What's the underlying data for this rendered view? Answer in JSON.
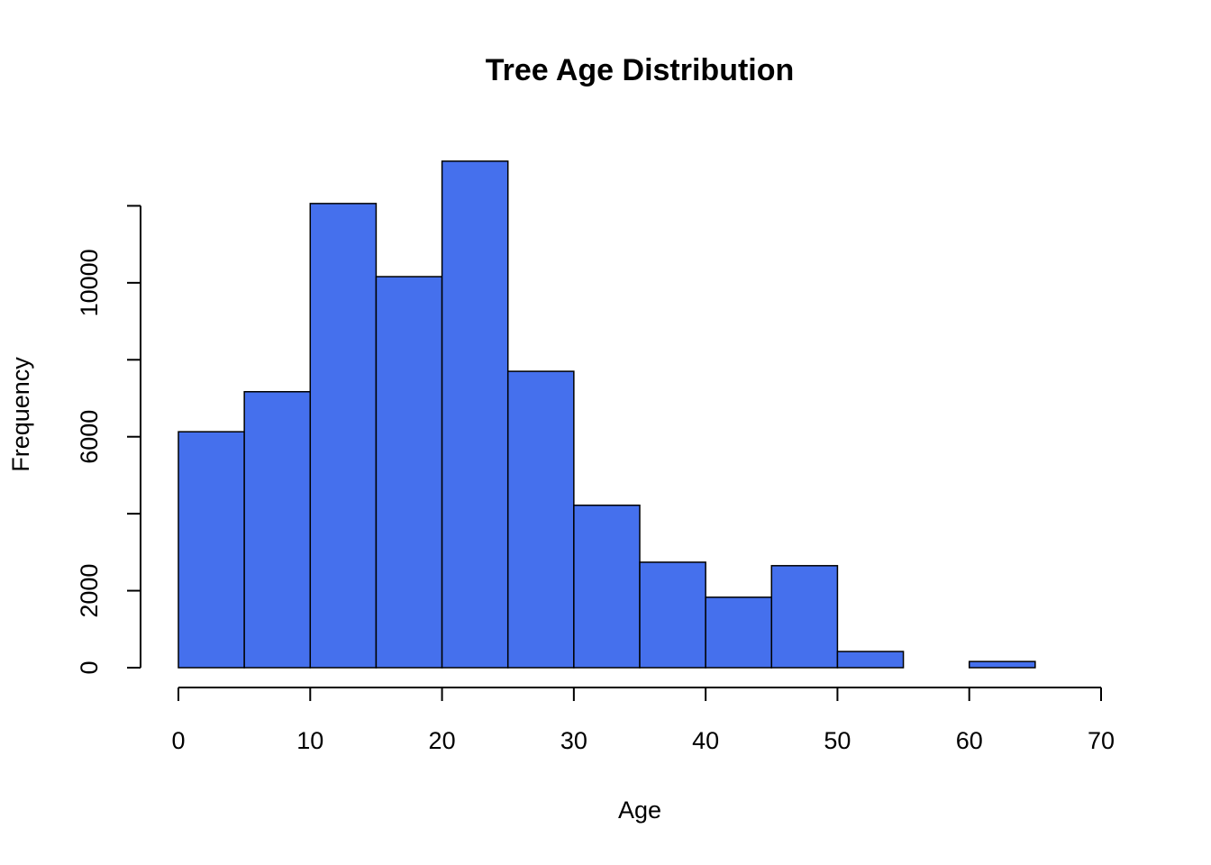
{
  "chart_data": {
    "type": "histogram",
    "title": "Tree Age Distribution",
    "x_label": "Age",
    "y_label": "Frequency",
    "bins": [
      0,
      5,
      10,
      15,
      20,
      25,
      30,
      35,
      40,
      45,
      50,
      55,
      60,
      65,
      70
    ],
    "values": [
      6130,
      7170,
      12060,
      10160,
      13160,
      7700,
      4220,
      2740,
      1830,
      2650,
      420,
      0,
      160,
      0
    ],
    "color": "#4570ed",
    "xlim": [
      0,
      70
    ],
    "xticks": [
      0,
      10,
      20,
      30,
      40,
      50,
      60,
      70
    ],
    "ylim": [
      0,
      14000
    ],
    "yticks": [
      0,
      2000,
      6000,
      10000
    ],
    "y_unlabeled_ticks": [
      4000,
      8000,
      12000
    ],
    "grid": false
  }
}
